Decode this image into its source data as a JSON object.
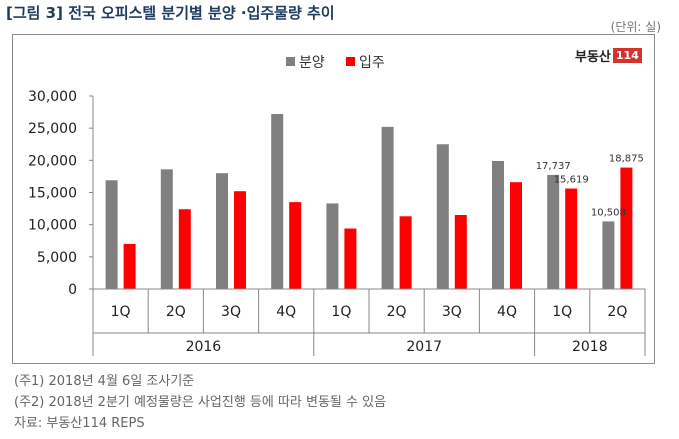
{
  "header": {
    "title": "[그림 3] 전국 오피스텔 분기별 분양 ·입주물량 추이",
    "unit": "(단위: 실)"
  },
  "logo": {
    "text": "부동산",
    "badge": "114"
  },
  "notes": [
    "(주1) 2018년 4월 6일 조사기준",
    "(주2) 2018년 2분기 예정물량은 사업진행 등에 따라 변동될 수 있음",
    "자료: 부동산114 REPS"
  ],
  "chart_data": {
    "type": "bar",
    "title": "[그림 3] 전국 오피스텔 분기별 분양 ·입주물량 추이",
    "unit": "(단위: 실)",
    "categories": [
      "1Q",
      "2Q",
      "3Q",
      "4Q",
      "1Q",
      "2Q",
      "3Q",
      "4Q",
      "1Q",
      "2Q"
    ],
    "year_groups": [
      {
        "label": "2016",
        "span": 4
      },
      {
        "label": "2017",
        "span": 4
      },
      {
        "label": "2018",
        "span": 2
      }
    ],
    "series": [
      {
        "name": "분양",
        "color": "#808080",
        "values": [
          16900,
          18600,
          18000,
          27200,
          13300,
          25200,
          22500,
          19900,
          17737,
          10508
        ]
      },
      {
        "name": "입주",
        "color": "#ff0000",
        "values": [
          7000,
          12400,
          15200,
          13500,
          9400,
          11300,
          11500,
          16600,
          15619,
          18875
        ]
      }
    ],
    "data_labels": [
      {
        "series": 0,
        "index": 8,
        "text": "17,737"
      },
      {
        "series": 1,
        "index": 8,
        "text": "15,619"
      },
      {
        "series": 0,
        "index": 9,
        "text": "10,508"
      },
      {
        "series": 1,
        "index": 9,
        "text": "18,875"
      }
    ],
    "yticks": [
      "0",
      "5,000",
      "10,000",
      "15,000",
      "20,000",
      "25,000",
      "30,000"
    ],
    "ylim": [
      0,
      30000
    ],
    "grid": false,
    "legend": "top-center"
  }
}
